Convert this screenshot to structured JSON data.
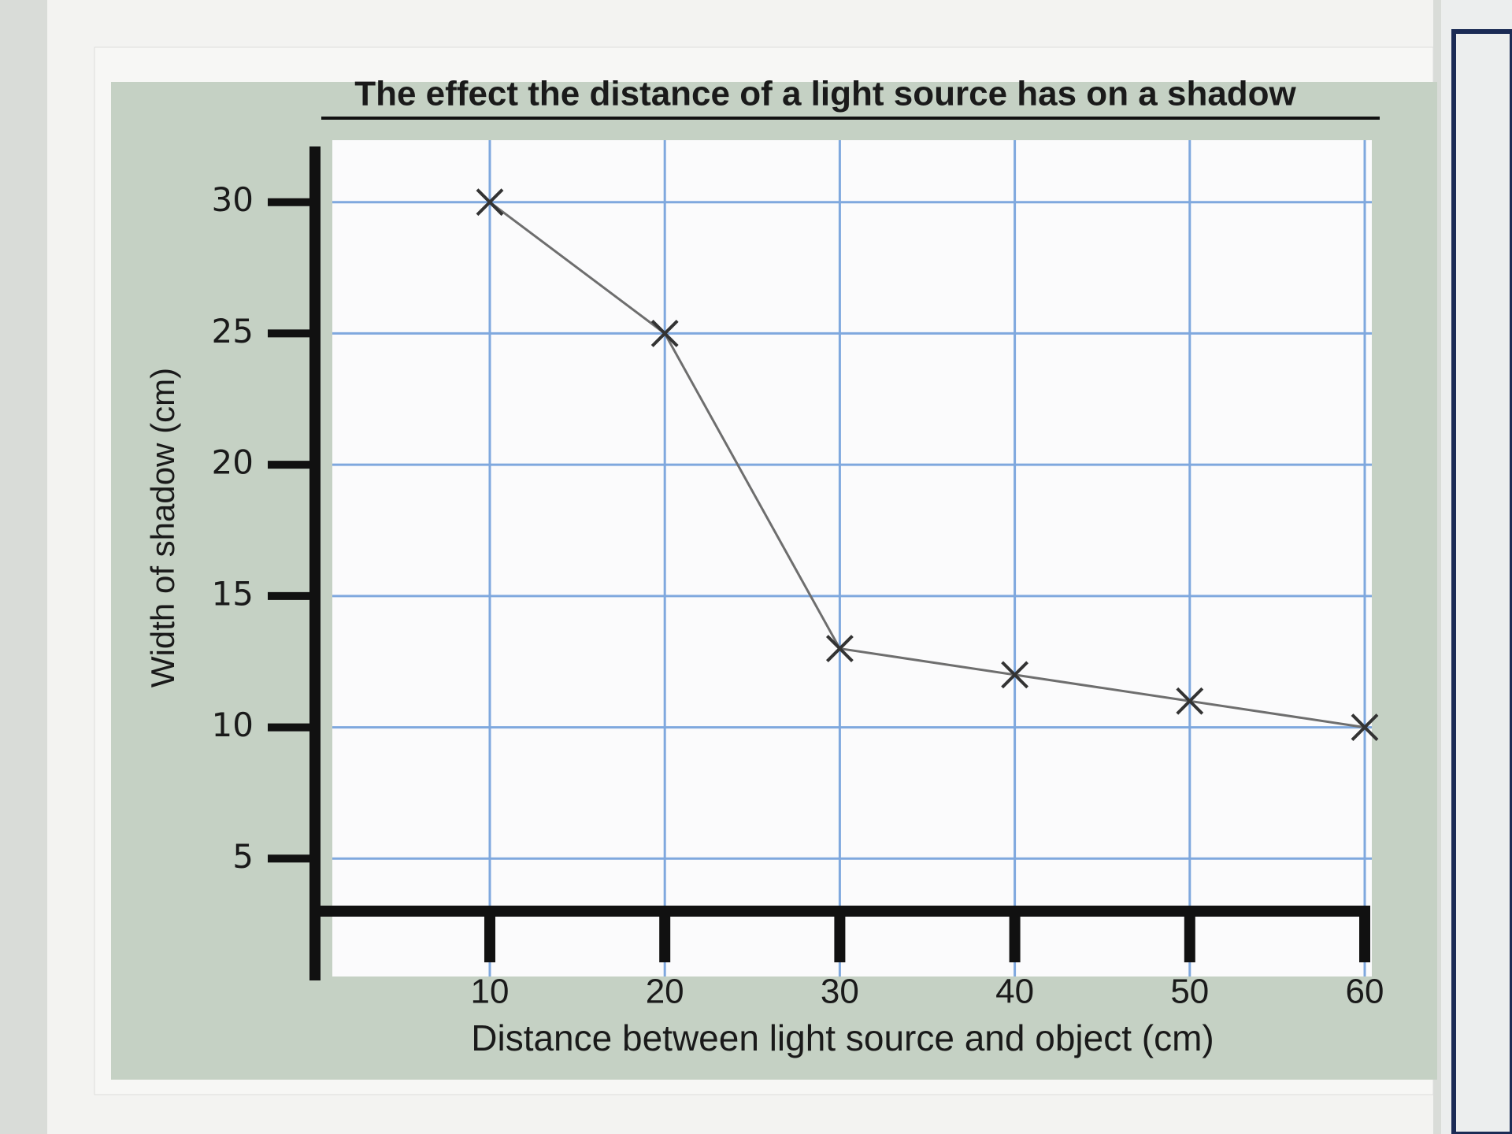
{
  "chart_data": {
    "type": "line",
    "title": "The effect the distance of a light source has on a shadow",
    "x_label": "Distance between light source and object (cm)",
    "y_label": "Width of shadow (cm)",
    "x": [
      10,
      20,
      30,
      40,
      50,
      60
    ],
    "series": [
      {
        "values": [
          30,
          25,
          13,
          12,
          11,
          10
        ],
        "color": "#6e6e6e"
      }
    ],
    "xlim": [
      1,
      60
    ],
    "ylim": [
      3,
      32
    ],
    "xticks": [
      10,
      20,
      30,
      40,
      50,
      60
    ],
    "yticks": [
      5,
      10,
      15,
      20,
      25,
      30
    ],
    "grid": true,
    "grid_color": "#7fa8de",
    "marker": "x"
  }
}
